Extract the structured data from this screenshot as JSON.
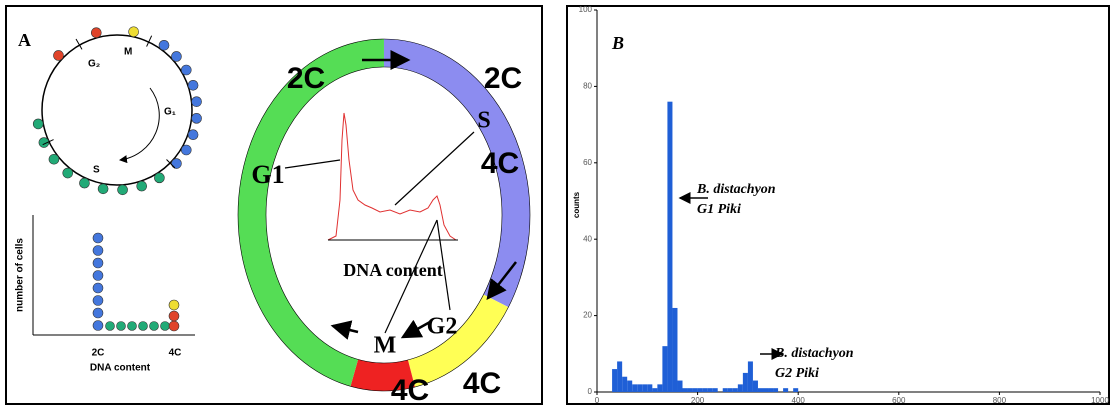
{
  "panel_a": {
    "label": "A",
    "cycle": {
      "g2": "G₂",
      "m": "M",
      "g1": "G₁",
      "s": "S"
    },
    "dot_plot": {
      "y_label": "number of cells",
      "x_label": "DNA content",
      "x_ticks": [
        "2C",
        "4C"
      ]
    },
    "ring": {
      "labels": [
        "2C",
        "2C",
        "S",
        "4C",
        "G1",
        "DNA content",
        "G2",
        "M",
        "4C",
        "4C"
      ]
    }
  },
  "chart_data": {
    "type": "histogram",
    "title": "B",
    "y_label": "counts",
    "color": "#1f5fd6",
    "bins": [
      0,
      10,
      20,
      30,
      40,
      50,
      60,
      70,
      80,
      90,
      100,
      110,
      120,
      130,
      140,
      150,
      160,
      170,
      180,
      190,
      200,
      210,
      220,
      230,
      240,
      250,
      260,
      270,
      280,
      290,
      300,
      310,
      320,
      330,
      340,
      350,
      360,
      370,
      380,
      390,
      400,
      410,
      420,
      430,
      440,
      450,
      460,
      470,
      480,
      490,
      500
    ],
    "counts": [
      0,
      0,
      0,
      6,
      8,
      4,
      3,
      2,
      2,
      2,
      2,
      1,
      2,
      12,
      76,
      22,
      3,
      1,
      1,
      1,
      1,
      1,
      1,
      1,
      0,
      1,
      1,
      1,
      2,
      5,
      8,
      3,
      1,
      1,
      1,
      1,
      0,
      1,
      0,
      1,
      0,
      0,
      0,
      0,
      0,
      0,
      0,
      0,
      0,
      0
    ],
    "xlim": [
      0,
      1000
    ],
    "ylim": [
      0,
      100
    ],
    "xticks": [
      0,
      200,
      400,
      600,
      800,
      1000
    ],
    "yticks": [
      0,
      20,
      40,
      60,
      80,
      100
    ],
    "annotations": [
      {
        "lines": [
          "B. distachyon",
          "G1 Piki"
        ]
      },
      {
        "lines": [
          "B. distachyon",
          "G2 Piki"
        ]
      }
    ]
  }
}
